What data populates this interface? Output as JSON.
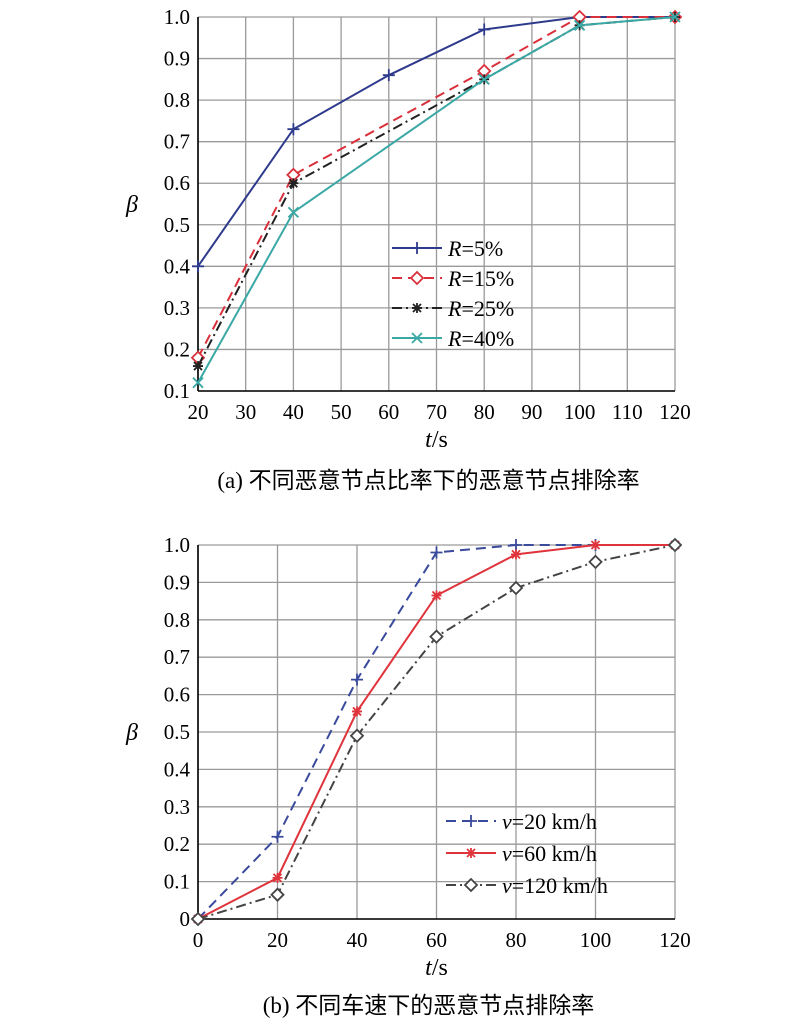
{
  "chart_data": [
    {
      "type": "line",
      "caption": "(a) 不同恶意节点比率下的恶意节点排除率",
      "xlabel_var": "t",
      "xlabel_unit": "/s",
      "ylabel": "β",
      "xlim": [
        20,
        120
      ],
      "ylim": [
        0.1,
        1.0
      ],
      "xticks": [
        20,
        30,
        40,
        50,
        60,
        70,
        80,
        90,
        100,
        110,
        120
      ],
      "yticks": [
        0.1,
        0.2,
        0.3,
        0.4,
        0.5,
        0.6,
        0.7,
        0.8,
        0.9,
        1.0
      ],
      "ytick_labels": [
        "0.1",
        "0.2",
        "0.3",
        "0.4",
        "0.5",
        "0.6",
        "0.7",
        "0.8",
        "0.9",
        "1.0"
      ],
      "grid": true,
      "legend_position": "center-right",
      "series": [
        {
          "var": "R",
          "suffix": "=5%",
          "color": "#2e3a8c",
          "dash": "",
          "marker": "plus",
          "x": [
            20,
            40,
            60,
            80,
            100,
            120
          ],
          "y": [
            0.4,
            0.73,
            0.86,
            0.97,
            1.0,
            1.0
          ]
        },
        {
          "var": "R",
          "suffix": "=15%",
          "color": "#d9303c",
          "dash": "10,6",
          "marker": "diamond",
          "x": [
            20,
            40,
            80,
            100,
            120
          ],
          "y": [
            0.18,
            0.62,
            0.87,
            1.0,
            1.0
          ]
        },
        {
          "var": "R",
          "suffix": "=25%",
          "color": "#222222",
          "dash": "10,4,2,4",
          "marker": "asterisk",
          "x": [
            20,
            40,
            80,
            100,
            120
          ],
          "y": [
            0.16,
            0.6,
            0.85,
            0.98,
            1.0
          ]
        },
        {
          "var": "R",
          "suffix": "=40%",
          "color": "#3aa8a4",
          "dash": "",
          "marker": "cross",
          "x": [
            20,
            40,
            80,
            100,
            120
          ],
          "y": [
            0.12,
            0.53,
            0.85,
            0.98,
            1.0
          ]
        }
      ]
    },
    {
      "type": "line",
      "caption": "(b) 不同车速下的恶意节点排除率",
      "xlabel_var": "t",
      "xlabel_unit": "/s",
      "ylabel": "β",
      "xlim": [
        0,
        120
      ],
      "ylim": [
        0,
        1.0
      ],
      "xticks": [
        0,
        20,
        40,
        60,
        80,
        100,
        120
      ],
      "yticks": [
        0,
        0.1,
        0.2,
        0.3,
        0.4,
        0.5,
        0.6,
        0.7,
        0.8,
        0.9,
        1.0
      ],
      "ytick_labels": [
        "0",
        "0.1",
        "0.2",
        "0.3",
        "0.4",
        "0.5",
        "0.6",
        "0.7",
        "0.8",
        "0.9",
        "1.0"
      ],
      "grid": true,
      "legend_position": "bottom-right",
      "series": [
        {
          "var": "v",
          "suffix": "=20 km/h",
          "color": "#3a4a9c",
          "dash": "10,6",
          "marker": "plus",
          "x": [
            0,
            20,
            40,
            60,
            80,
            100,
            120
          ],
          "y": [
            0,
            0.22,
            0.64,
            0.98,
            1.0,
            1.0,
            1.0
          ]
        },
        {
          "var": "v",
          "suffix": "=60 km/h",
          "color": "#e0343c",
          "dash": "",
          "marker": "asterisk",
          "x": [
            0,
            20,
            40,
            60,
            80,
            100,
            120
          ],
          "y": [
            0,
            0.11,
            0.555,
            0.865,
            0.975,
            1.0,
            1.0
          ]
        },
        {
          "var": "v",
          "suffix": "=120 km/h",
          "color": "#444444",
          "dash": "10,4,2,4",
          "marker": "diamond",
          "x": [
            0,
            20,
            40,
            60,
            80,
            100,
            120
          ],
          "y": [
            0,
            0.065,
            0.49,
            0.755,
            0.885,
            0.955,
            1.0
          ]
        }
      ]
    }
  ]
}
